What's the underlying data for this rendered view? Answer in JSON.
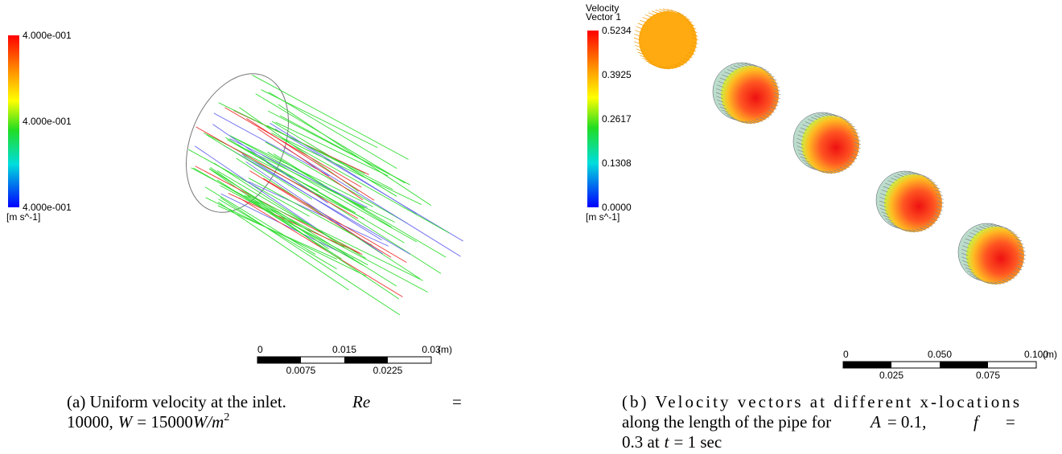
{
  "panel_a": {
    "legend": {
      "labels": [
        "4.000e-001",
        "4.000e-001",
        "4.000e-001"
      ],
      "unit": "[m s^-1]"
    },
    "scale": {
      "top": [
        "0",
        "0.015",
        "0.03"
      ],
      "unit": "(m)",
      "bottom": [
        "0.0075",
        "0.0225"
      ]
    },
    "caption": [
      "(a) Uniform velocity at the inlet.",
      "Re",
      "=",
      "10000,",
      "W",
      "= 15000",
      "W/m",
      "2"
    ]
  },
  "panel_b": {
    "legend": {
      "title": [
        "Velocity",
        "Vector 1"
      ],
      "labels": [
        "0.5234",
        "0.3925",
        "0.2617",
        "0.1308",
        "0.0000"
      ],
      "unit": "[m s^-1]"
    },
    "scale": {
      "top": [
        "0",
        "0.050",
        "0.100"
      ],
      "unit": "(m)",
      "bottom": [
        "0.025",
        "0.075"
      ]
    },
    "caption": [
      "(b) Velocity vectors at different x-locations",
      "along the length of the pipe for",
      "A",
      "= 0.1,",
      "f",
      "=",
      "0.3 at",
      "t",
      "= 1 sec"
    ]
  }
}
